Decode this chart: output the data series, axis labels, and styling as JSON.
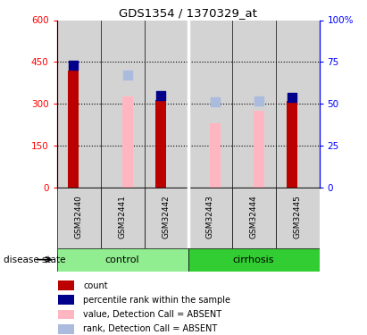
{
  "title": "GDS1354 / 1370329_at",
  "samples": [
    "GSM32440",
    "GSM32441",
    "GSM32442",
    "GSM32443",
    "GSM32444",
    "GSM32445"
  ],
  "groups": [
    "control",
    "control",
    "control",
    "cirrhosis",
    "cirrhosis",
    "cirrhosis"
  ],
  "count_values": [
    420,
    0,
    315,
    0,
    0,
    310
  ],
  "rank_pct": [
    73,
    0,
    55,
    0,
    0,
    54
  ],
  "absent_value_values": [
    0,
    325,
    0,
    230,
    275,
    0
  ],
  "absent_rank_pct": [
    0,
    67,
    0,
    51,
    52,
    0
  ],
  "ylim_left": [
    0,
    600
  ],
  "ylim_right": [
    0,
    100
  ],
  "yticks_left": [
    0,
    150,
    300,
    450,
    600
  ],
  "yticks_right": [
    0,
    25,
    50,
    75,
    100
  ],
  "yticklabels_left": [
    "0",
    "150",
    "300",
    "450",
    "600"
  ],
  "yticklabels_right": [
    "0",
    "25",
    "50",
    "75",
    "100%"
  ],
  "control_color": "#90EE90",
  "cirrhosis_color": "#32CD32",
  "bar_bg_color": "#D3D3D3",
  "count_color": "#BB0000",
  "rank_color": "#00008B",
  "absent_value_color": "#FFB6C1",
  "absent_rank_color": "#AABBDD",
  "legend_items": [
    {
      "label": "count",
      "color": "#BB0000",
      "marker": "s"
    },
    {
      "label": "percentile rank within the sample",
      "color": "#00008B",
      "marker": "s"
    },
    {
      "label": "value, Detection Call = ABSENT",
      "color": "#FFB6C1",
      "marker": "s"
    },
    {
      "label": "rank, Detection Call = ABSENT",
      "color": "#AABBDD",
      "marker": "s"
    }
  ]
}
